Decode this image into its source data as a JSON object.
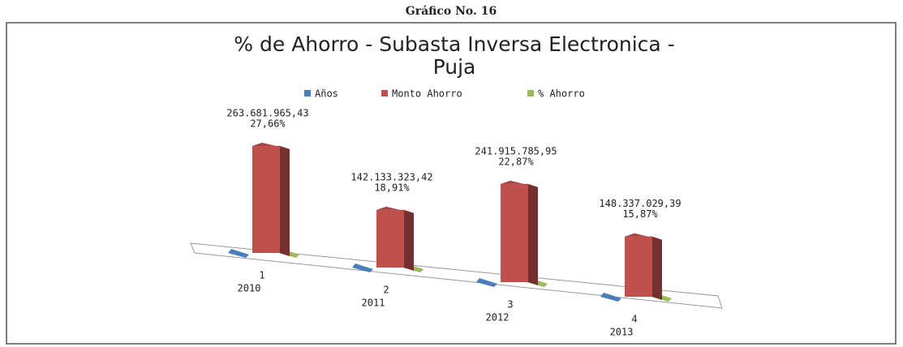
{
  "header": {
    "caption": "Gráfico No. 16"
  },
  "chart_data": {
    "type": "bar3d",
    "title": [
      "% de Ahorro - Subasta Inversa Electronica -",
      "Puja"
    ],
    "categories": [
      "1",
      "2",
      "3",
      "4"
    ],
    "series": [
      {
        "name": "Años",
        "color": "#4a7ebb",
        "values": [
          2010,
          2011,
          2012,
          2013
        ]
      },
      {
        "name": "Monto Ahorro",
        "color": "#c0504d",
        "values": [
          263681965.43,
          142133323.42,
          241915785.95,
          148337029.39
        ],
        "value_labels": [
          "263.681.965,43",
          "142.133.323,42",
          "241.915.785,95",
          "148.337.029,39"
        ]
      },
      {
        "name": "% Ahorro",
        "color": "#9bbb59",
        "values": [
          27.66,
          18.91,
          22.87,
          15.87
        ],
        "value_labels": [
          "27,66%",
          "18,91%",
          "22,87%",
          "15,87%"
        ]
      }
    ],
    "legend": "top"
  }
}
